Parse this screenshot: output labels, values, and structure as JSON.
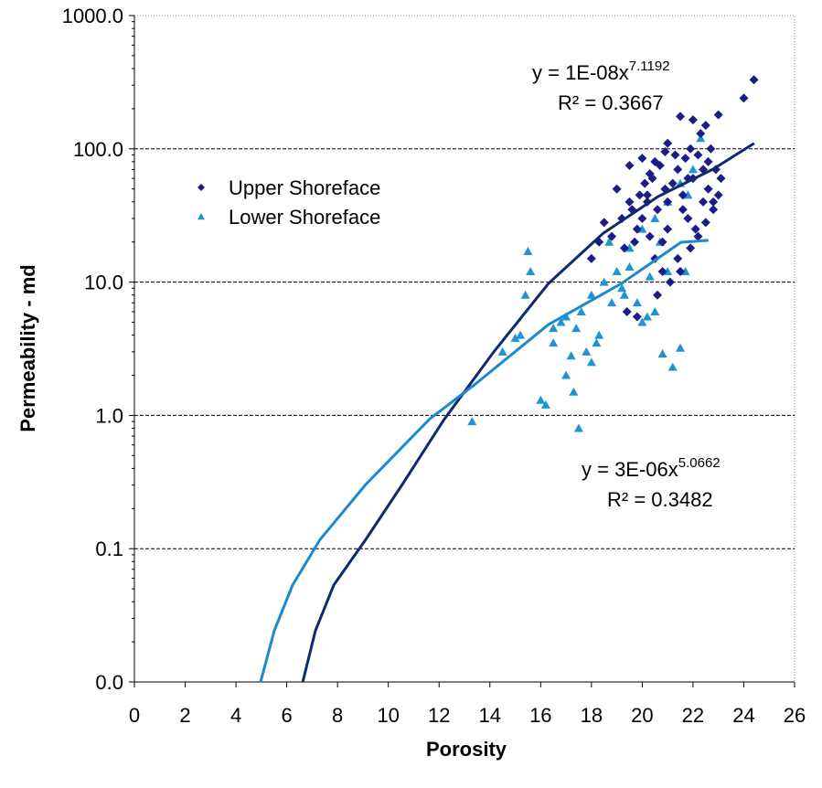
{
  "chart_data": {
    "type": "scatter",
    "x_label": "Porosity",
    "y_label": "Permeability - md",
    "log_y": true,
    "grid": true,
    "legend": "upper left",
    "xlim": [
      0,
      26
    ],
    "xticks": [
      0,
      2,
      4,
      6,
      8,
      10,
      12,
      14,
      16,
      18,
      20,
      22,
      24,
      26
    ],
    "ylim": [
      0.01,
      1000
    ],
    "yticks": [
      {
        "value": 0.01,
        "label": "0.0"
      },
      {
        "value": 0.1,
        "label": "0.1"
      },
      {
        "value": 1,
        "label": "1.0"
      },
      {
        "value": 10,
        "label": "10.0"
      },
      {
        "value": 100,
        "label": "100.0"
      },
      {
        "value": 1000,
        "label": "1000.0"
      }
    ],
    "series": [
      {
        "name": "Upper Shoreface",
        "color": "#1c1c86",
        "marker": "diamond",
        "x": [
          24.4,
          24.0,
          23.0,
          22.5,
          22.0,
          21.5,
          21.0,
          20.5,
          20.0,
          19.5,
          19.0,
          18.5,
          18.0,
          18.3,
          18.8,
          19.2,
          19.5,
          19.8,
          20.0,
          20.2,
          20.4,
          20.6,
          20.8,
          21.0,
          21.2,
          21.4,
          21.6,
          21.8,
          22.0,
          22.2,
          22.4,
          22.6,
          22.8,
          23.0,
          22.9,
          22.7,
          22.3,
          21.9,
          21.7,
          21.3,
          20.9,
          20.7,
          20.3,
          20.1,
          19.9,
          19.6,
          19.3,
          19.7,
          20.5,
          20.8,
          21.1,
          21.5,
          21.9,
          22.1,
          22.5,
          22.8,
          23.1,
          22.2,
          21.6,
          21.0,
          20.3,
          19.4,
          19.8,
          20.6,
          21.4,
          22.4,
          22.6,
          21.8,
          20.9,
          20.2
        ],
        "values": [
          330,
          240,
          180,
          150,
          165,
          175,
          110,
          80,
          85,
          75,
          50,
          28,
          15,
          20,
          22,
          30,
          40,
          25,
          30,
          45,
          60,
          35,
          20,
          40,
          55,
          70,
          45,
          30,
          60,
          90,
          40,
          50,
          35,
          45,
          70,
          100,
          130,
          100,
          85,
          90,
          95,
          75,
          65,
          55,
          45,
          35,
          18,
          20,
          15,
          12,
          10,
          12,
          18,
          25,
          28,
          40,
          60,
          22,
          35,
          25,
          22,
          6,
          5.5,
          8,
          15,
          70,
          80,
          60,
          50,
          40
        ]
      },
      {
        "name": "Lower Shoreface",
        "color": "#1f93d6",
        "marker": "triangle",
        "x": [
          15.5,
          15.6,
          15.4,
          15.2,
          16.0,
          16.2,
          16.5,
          16.8,
          17.0,
          17.2,
          17.5,
          17.4,
          17.6,
          17.8,
          18.0,
          18.2,
          18.0,
          18.5,
          18.8,
          19.0,
          19.2,
          19.5,
          19.8,
          20.0,
          20.2,
          20.5,
          20.8,
          21.0,
          21.2,
          21.5,
          20.0,
          20.5,
          21.0,
          21.5,
          22.0,
          22.3,
          21.8,
          20.7,
          19.5,
          18.7,
          16.5,
          17.0,
          13.3,
          14.5,
          15.0,
          17.3,
          18.3,
          19.3,
          20.3,
          21.7
        ],
        "values": [
          17,
          12,
          8,
          4,
          1.3,
          1.2,
          3.5,
          5,
          5.5,
          2.8,
          0.8,
          4.5,
          6,
          3,
          2.5,
          3.5,
          8,
          10,
          7,
          12,
          9,
          13,
          7,
          5,
          5.5,
          6,
          2.9,
          12,
          2.3,
          3.2,
          25,
          30,
          40,
          55,
          70,
          120,
          45,
          20,
          18,
          20,
          4.5,
          2.0,
          0.9,
          3,
          3.8,
          1.5,
          4,
          8,
          11,
          12
        ]
      }
    ],
    "trendlines": [
      {
        "color": "#0e2a6e",
        "x": [
          6.63,
          7.13,
          7.85,
          9.11,
          10.55,
          12.17,
          14.15,
          16.31,
          18.47,
          20.63,
          22.79,
          24.41
        ],
        "values": [
          0.01,
          0.0243,
          0.0533,
          0.117,
          0.303,
          0.916,
          2.99,
          9.78,
          23.3,
          43.9,
          70.4,
          110
        ]
      },
      {
        "color": "#1a8ad0",
        "x": [
          4.97,
          5.51,
          6.23,
          7.31,
          9.11,
          11.63,
          13.43,
          16.31,
          19.19,
          21.53,
          22.61
        ],
        "values": [
          0.01,
          0.0243,
          0.0533,
          0.117,
          0.303,
          0.94,
          1.72,
          4.81,
          9.78,
          19.9,
          20.6
        ]
      }
    ],
    "annotations": [
      {
        "text": "y = 1E-08x",
        "superscript": "7.1192"
      },
      {
        "text": "R² = 0.3667"
      },
      {
        "text": "y = 3E-06x",
        "superscript": "5.0662"
      },
      {
        "text": "R² = 0.3482"
      }
    ]
  }
}
